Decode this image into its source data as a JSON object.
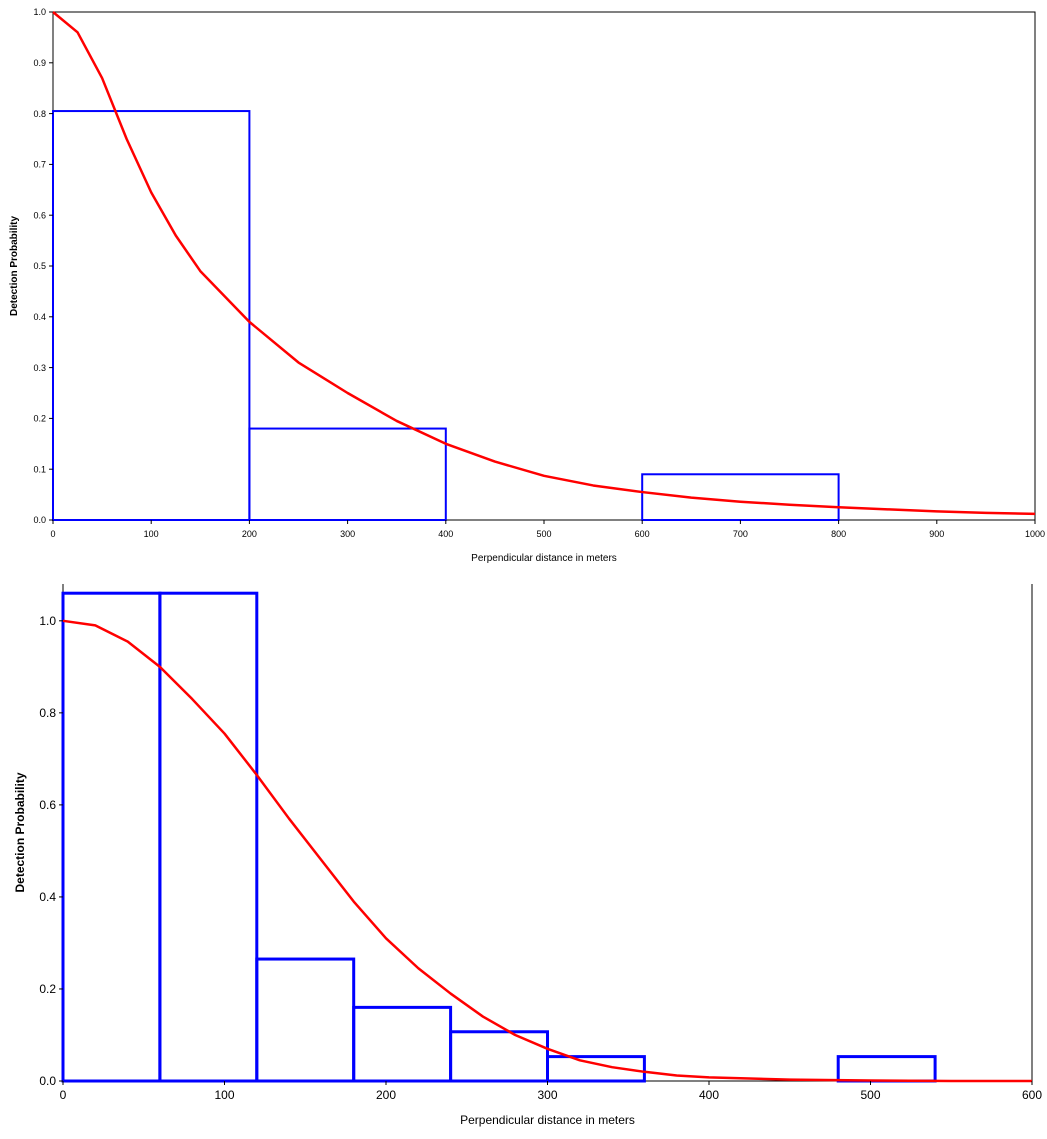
{
  "chart_data": [
    {
      "type": "bar",
      "title": "",
      "xlabel": "Perpendicular distance in meters",
      "ylabel": "Detection Probability",
      "xlim": [
        0,
        1000
      ],
      "ylim": [
        0,
        1.0
      ],
      "x_ticks": [
        "0",
        "100",
        "200",
        "300",
        "400",
        "500",
        "600",
        "700",
        "800",
        "900",
        "1000"
      ],
      "y_ticks": [
        "0.0",
        "0.1",
        "0.2",
        "0.3",
        "0.4",
        "0.5",
        "0.6",
        "0.7",
        "0.8",
        "0.9",
        "1.0"
      ],
      "grid": false,
      "histogram": {
        "bins": [
          [
            0,
            200
          ],
          [
            200,
            400
          ],
          [
            400,
            600
          ],
          [
            600,
            800
          ],
          [
            800,
            1000
          ]
        ],
        "values": [
          0.805,
          0.18,
          0.0,
          0.09,
          0.0
        ]
      },
      "fit_curve": {
        "x": [
          0,
          25,
          50,
          75,
          100,
          125,
          150,
          200,
          250,
          300,
          350,
          400,
          450,
          500,
          550,
          600,
          650,
          700,
          750,
          800,
          850,
          900,
          950,
          1000
        ],
        "y": [
          1.0,
          0.96,
          0.87,
          0.75,
          0.645,
          0.56,
          0.49,
          0.39,
          0.31,
          0.25,
          0.195,
          0.15,
          0.115,
          0.087,
          0.068,
          0.055,
          0.044,
          0.036,
          0.03,
          0.025,
          0.021,
          0.017,
          0.014,
          0.012
        ]
      },
      "colors": {
        "histogram": "#0000ff",
        "curve": "#ff0000"
      }
    },
    {
      "type": "bar",
      "title": "",
      "xlabel": "Perpendicular distance in meters",
      "ylabel": "Detection Probability",
      "xlim": [
        0,
        600
      ],
      "ylim": [
        0,
        1.08
      ],
      "x_ticks": [
        "0",
        "100",
        "200",
        "300",
        "400",
        "500",
        "600"
      ],
      "y_ticks": [
        "0.0",
        "0.2",
        "0.4",
        "0.6",
        "0.8",
        "1.0"
      ],
      "grid": false,
      "histogram": {
        "bins": [
          [
            0,
            60
          ],
          [
            60,
            120
          ],
          [
            120,
            180
          ],
          [
            180,
            240
          ],
          [
            240,
            300
          ],
          [
            300,
            360
          ],
          [
            360,
            420
          ],
          [
            420,
            480
          ],
          [
            480,
            540
          ],
          [
            540,
            600
          ]
        ],
        "values": [
          1.06,
          1.06,
          0.265,
          0.16,
          0.107,
          0.053,
          0.0,
          0.0,
          0.053,
          0.0
        ]
      },
      "fit_curve": {
        "x": [
          0,
          20,
          40,
          60,
          80,
          100,
          120,
          140,
          160,
          180,
          200,
          220,
          240,
          260,
          280,
          300,
          320,
          340,
          360,
          380,
          400,
          450,
          500,
          550,
          600
        ],
        "y": [
          1.0,
          0.99,
          0.955,
          0.9,
          0.83,
          0.755,
          0.665,
          0.57,
          0.48,
          0.39,
          0.31,
          0.245,
          0.19,
          0.14,
          0.1,
          0.07,
          0.045,
          0.03,
          0.02,
          0.012,
          0.008,
          0.003,
          0.001,
          0.0,
          0.0
        ]
      },
      "colors": {
        "histogram": "#0000ff",
        "curve": "#ff0000"
      }
    }
  ]
}
